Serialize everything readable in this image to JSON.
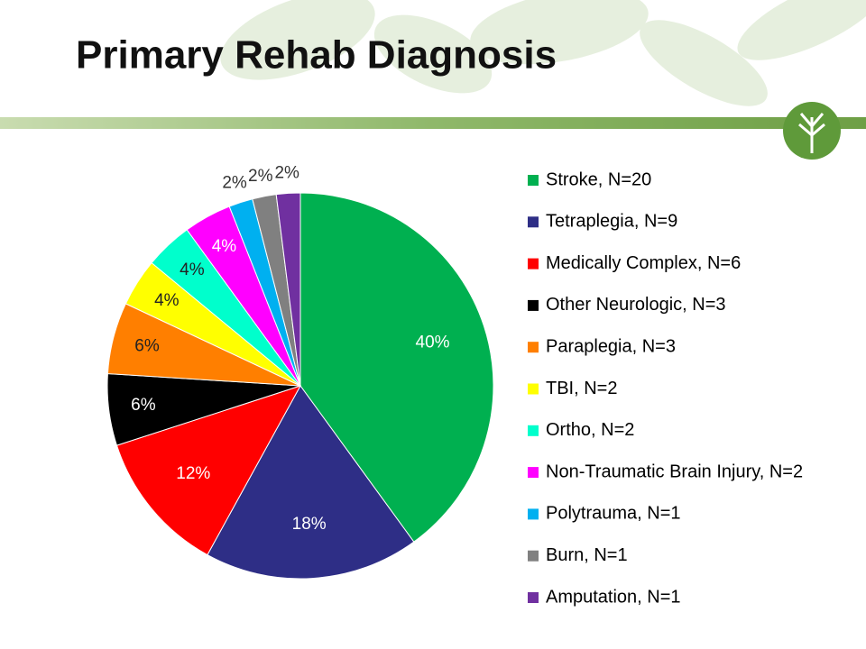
{
  "chart_data": {
    "type": "pie",
    "title": "Primary Rehab Diagnosis",
    "categories": [
      "Stroke, N=20",
      "Tetraplegia, N=9",
      "Medically Complex, N=6",
      "Other Neurologic, N=3",
      "Paraplegia, N=3",
      "TBI, N=2",
      "Ortho, N=2",
      "Non-Traumatic Brain Injury, N=2",
      "Polytrauma, N=1",
      "Burn, N=1",
      "Amputation, N=1"
    ],
    "values": [
      40,
      18,
      12,
      6,
      6,
      4,
      4,
      4,
      2,
      2,
      2
    ],
    "value_labels": [
      "40%",
      "18%",
      "12%",
      "6%",
      "6%",
      "4%",
      "4%",
      "4%",
      "2%",
      "2%",
      "2%"
    ],
    "colors": [
      "#00b050",
      "#2e2e86",
      "#ff0000",
      "#000000",
      "#ff7f00",
      "#ffff00",
      "#00ffcc",
      "#ff00ff",
      "#00b0f0",
      "#808080",
      "#7030a0"
    ],
    "legend": "right"
  }
}
